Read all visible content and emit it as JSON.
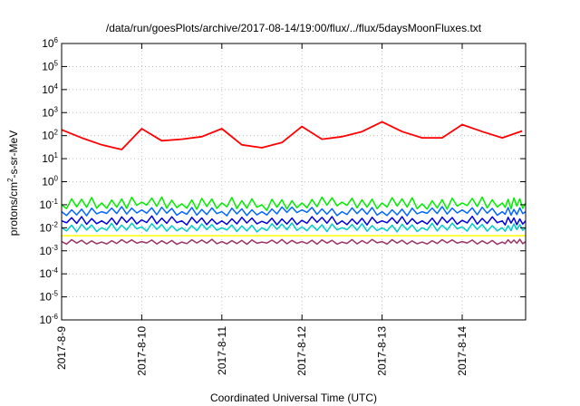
{
  "chart_data": {
    "type": "line",
    "title": "/data/run/goesPlots/archive/2017-08-14/19:00/flux/../flux/5daysMoonFluxes.txt",
    "xlabel": "Coordinated Universal Time (UTC)",
    "ylabel": {
      "pre": "protons/cm",
      "sup": "2",
      "post": "-s-sr-MeV"
    },
    "yscale": "log",
    "ylim": [
      1e-06,
      1000000.0
    ],
    "y_ticks": [
      {
        "exp": "-6"
      },
      {
        "exp": "-5"
      },
      {
        "exp": "-4"
      },
      {
        "exp": "-3"
      },
      {
        "exp": "-2"
      },
      {
        "exp": "-1"
      },
      {
        "exp": "0"
      },
      {
        "exp": "1"
      },
      {
        "exp": "2"
      },
      {
        "exp": "3"
      },
      {
        "exp": "4"
      },
      {
        "exp": "5"
      },
      {
        "exp": "6"
      }
    ],
    "xlim": [
      "2017-08-09T00:00",
      "2017-08-14T19:00"
    ],
    "x_ticks": [
      "2017-8-9",
      "2017-8-10",
      "2017-8-11",
      "2017-8-12",
      "2017-8-13",
      "2017-8-14"
    ],
    "grid": true,
    "legend": "none",
    "series": [
      {
        "color": "#ff0000",
        "x": [
          "2017-08-09T00:00",
          "2017-08-09T06:00",
          "2017-08-09T12:00",
          "2017-08-09T18:00",
          "2017-08-10T00:00",
          "2017-08-10T06:00",
          "2017-08-10T12:00",
          "2017-08-10T18:00",
          "2017-08-11T00:00",
          "2017-08-11T06:00",
          "2017-08-11T12:00",
          "2017-08-11T18:00",
          "2017-08-12T00:00",
          "2017-08-12T06:00",
          "2017-08-12T12:00",
          "2017-08-12T18:00",
          "2017-08-13T00:00",
          "2017-08-13T06:00",
          "2017-08-13T12:00",
          "2017-08-13T18:00",
          "2017-08-14T00:00",
          "2017-08-14T06:00",
          "2017-08-14T12:00",
          "2017-08-14T18:00"
        ],
        "values": [
          180,
          80,
          40,
          25,
          200,
          60,
          70,
          90,
          200,
          40,
          30,
          50,
          250,
          70,
          90,
          150,
          400,
          150,
          80,
          80,
          300,
          150,
          80,
          160
        ]
      },
      {
        "color": "#00ee00",
        "x": [
          "2017-08-09T00:00",
          "2017-08-09T12:00",
          "2017-08-10T00:00",
          "2017-08-10T12:00",
          "2017-08-11T00:00",
          "2017-08-11T12:00",
          "2017-08-12T00:00",
          "2017-08-12T12:00",
          "2017-08-13T00:00",
          "2017-08-13T12:00",
          "2017-08-14T00:00",
          "2017-08-14T12:00",
          "2017-08-14T19:00"
        ],
        "values": [
          0.1,
          0.12,
          0.13,
          0.11,
          0.12,
          0.1,
          0.12,
          0.13,
          0.12,
          0.11,
          0.12,
          0.12,
          0.12
        ]
      },
      {
        "color": "#0066ff",
        "x": [
          "2017-08-09T00:00",
          "2017-08-09T12:00",
          "2017-08-10T00:00",
          "2017-08-10T12:00",
          "2017-08-11T00:00",
          "2017-08-11T12:00",
          "2017-08-12T00:00",
          "2017-08-12T12:00",
          "2017-08-13T00:00",
          "2017-08-13T12:00",
          "2017-08-14T00:00",
          "2017-08-14T12:00",
          "2017-08-14T19:00"
        ],
        "values": [
          0.05,
          0.05,
          0.06,
          0.05,
          0.05,
          0.05,
          0.06,
          0.05,
          0.05,
          0.05,
          0.06,
          0.05,
          0.05
        ]
      },
      {
        "color": "#0000dd",
        "x": [
          "2017-08-09T00:00",
          "2017-08-09T12:00",
          "2017-08-10T00:00",
          "2017-08-10T12:00",
          "2017-08-11T00:00",
          "2017-08-11T12:00",
          "2017-08-12T00:00",
          "2017-08-12T12:00",
          "2017-08-13T00:00",
          "2017-08-13T12:00",
          "2017-08-14T00:00",
          "2017-08-14T12:00",
          "2017-08-14T19:00"
        ],
        "values": [
          0.02,
          0.02,
          0.022,
          0.02,
          0.02,
          0.019,
          0.021,
          0.02,
          0.02,
          0.02,
          0.021,
          0.02,
          0.02
        ]
      },
      {
        "color": "#00cccc",
        "x": [
          "2017-08-09T00:00",
          "2017-08-09T12:00",
          "2017-08-10T00:00",
          "2017-08-10T12:00",
          "2017-08-11T00:00",
          "2017-08-11T12:00",
          "2017-08-12T00:00",
          "2017-08-12T12:00",
          "2017-08-13T00:00",
          "2017-08-13T12:00",
          "2017-08-14T00:00",
          "2017-08-14T12:00",
          "2017-08-14T19:00"
        ],
        "values": [
          0.01,
          0.01,
          0.011,
          0.01,
          0.01,
          0.01,
          0.011,
          0.01,
          0.01,
          0.01,
          0.011,
          0.01,
          0.01
        ]
      },
      {
        "color": "#ffff00",
        "x": [
          "2017-08-09T00:00",
          "2017-08-14T19:00"
        ],
        "values": [
          0.0045,
          0.0045
        ]
      },
      {
        "color": "#993366",
        "x": [
          "2017-08-09T00:00",
          "2017-08-09T12:00",
          "2017-08-10T00:00",
          "2017-08-10T12:00",
          "2017-08-11T00:00",
          "2017-08-11T12:00",
          "2017-08-12T00:00",
          "2017-08-12T12:00",
          "2017-08-13T00:00",
          "2017-08-13T12:00",
          "2017-08-14T00:00",
          "2017-08-14T12:00",
          "2017-08-14T19:00"
        ],
        "values": [
          0.0025,
          0.0024,
          0.0025,
          0.0024,
          0.0025,
          0.0024,
          0.0025,
          0.0024,
          0.0025,
          0.0024,
          0.0025,
          0.0024,
          0.0025
        ]
      }
    ]
  }
}
